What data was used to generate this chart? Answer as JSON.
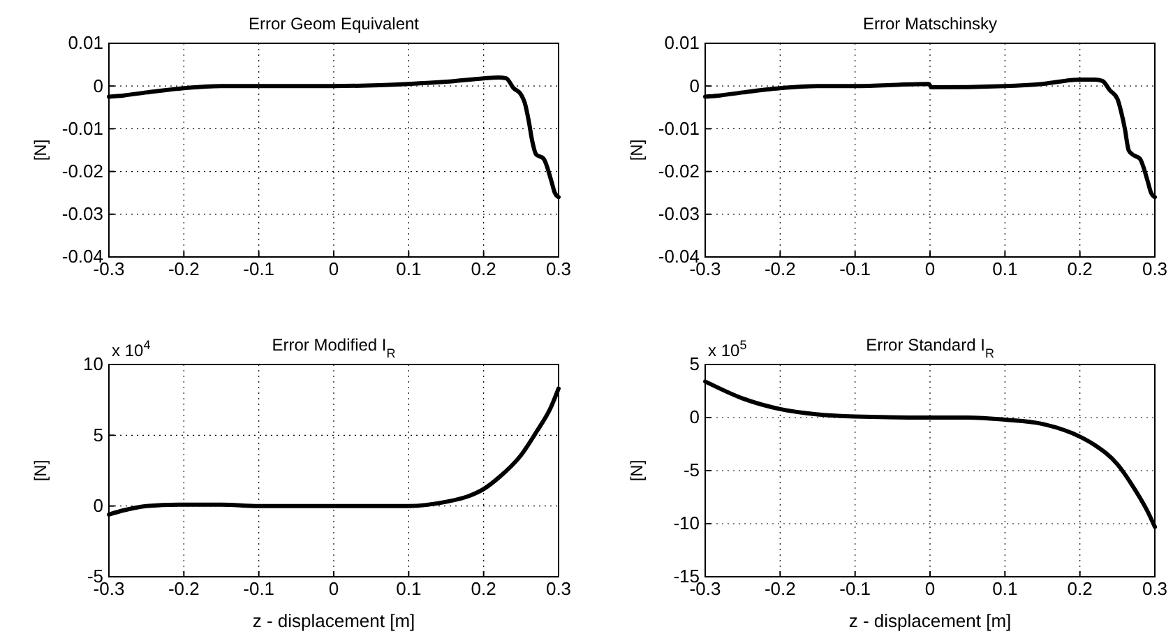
{
  "chart_data": [
    {
      "type": "line",
      "title": "Error Geom Equivalent",
      "ylabel": "[N]",
      "xlim": [
        -0.3,
        0.3
      ],
      "xticks": [
        -0.3,
        -0.2,
        -0.1,
        0,
        0.1,
        0.2,
        0.3
      ],
      "ylim": [
        -0.04,
        0.01
      ],
      "yticks": [
        -0.04,
        -0.03,
        -0.02,
        -0.01,
        0,
        0.01
      ],
      "grid": true,
      "line_style": "solid",
      "x": [
        -0.3,
        -0.28,
        -0.25,
        -0.2,
        -0.15,
        -0.1,
        0,
        0.1,
        0.15,
        0.2,
        0.22,
        0.23,
        0.24,
        0.25,
        0.255,
        0.26,
        0.265,
        0.27,
        0.28,
        0.29,
        0.295,
        0.3
      ],
      "series": [
        {
          "color": "#000000",
          "values": [
            -0.0025,
            -0.0022,
            -0.0015,
            -0.0005,
            0,
            0,
            0,
            0.0005,
            0.001,
            0.0018,
            0.002,
            0.0018,
            -0.0005,
            -0.002,
            -0.004,
            -0.008,
            -0.013,
            -0.016,
            -0.017,
            -0.022,
            -0.025,
            -0.026
          ]
        }
      ]
    },
    {
      "type": "line",
      "title": "Error Matschinsky",
      "ylabel": "[N]",
      "xlim": [
        -0.3,
        0.3
      ],
      "xticks": [
        -0.3,
        -0.2,
        -0.1,
        0,
        0.1,
        0.2,
        0.3
      ],
      "ylim": [
        -0.04,
        0.01
      ],
      "yticks": [
        -0.04,
        -0.03,
        -0.02,
        -0.01,
        0,
        0.01
      ],
      "grid": true,
      "line_style": "solid",
      "x": [
        -0.3,
        -0.28,
        -0.25,
        -0.2,
        -0.15,
        -0.1,
        -0.002,
        0.002,
        0.1,
        0.15,
        0.2,
        0.22,
        0.23,
        0.24,
        0.25,
        0.255,
        0.26,
        0.265,
        0.27,
        0.28,
        0.29,
        0.295,
        0.3
      ],
      "series": [
        {
          "color": "#000000",
          "values": [
            -0.0025,
            -0.0022,
            -0.0015,
            -0.0005,
            0,
            0,
            0.0005,
            -0.0003,
            0,
            0.0005,
            0.0015,
            0.0015,
            0.0012,
            -0.001,
            -0.003,
            -0.006,
            -0.01,
            -0.015,
            -0.016,
            -0.017,
            -0.022,
            -0.025,
            -0.026
          ]
        }
      ]
    },
    {
      "type": "line",
      "title": "Error Modified I$_{R}$",
      "ylabel": "[N]",
      "xlabel": "z - displacement [m]",
      "annotations": [
        "x 10$^{4}$"
      ],
      "xlim": [
        -0.3,
        0.3
      ],
      "xticks": [
        -0.3,
        -0.2,
        -0.1,
        0,
        0.1,
        0.2,
        0.3
      ],
      "ylim": [
        -5,
        10
      ],
      "yticks": [
        -5,
        0,
        5,
        10
      ],
      "grid": true,
      "line_style": "solid",
      "x": [
        -0.3,
        -0.28,
        -0.25,
        -0.2,
        -0.15,
        -0.1,
        0,
        0.1,
        0.15,
        0.18,
        0.2,
        0.22,
        0.25,
        0.27,
        0.29,
        0.3
      ],
      "series": [
        {
          "color": "#000000",
          "values": [
            -0.6,
            -0.3,
            0,
            0.1,
            0.1,
            0,
            0,
            0,
            0.3,
            0.7,
            1.2,
            2.0,
            3.6,
            5.2,
            7.0,
            8.3
          ]
        }
      ]
    },
    {
      "type": "line",
      "title": "Error Standard I$_{R}$",
      "ylabel": "[N]",
      "xlabel": "z - displacement [m]",
      "annotations": [
        "x 10$^{5}$"
      ],
      "xlim": [
        -0.3,
        0.3
      ],
      "xticks": [
        -0.3,
        -0.2,
        -0.1,
        0,
        0.1,
        0.2,
        0.3
      ],
      "ylim": [
        -15,
        5
      ],
      "yticks": [
        -15,
        -10,
        -5,
        0,
        5
      ],
      "grid": true,
      "line_style": "solid",
      "x": [
        -0.3,
        -0.25,
        -0.2,
        -0.15,
        -0.1,
        0,
        0.05,
        0.1,
        0.15,
        0.2,
        0.22,
        0.25,
        0.27,
        0.29,
        0.3
      ],
      "series": [
        {
          "color": "#000000",
          "values": [
            3.4,
            1.8,
            0.8,
            0.3,
            0.1,
            0,
            0,
            -0.2,
            -0.6,
            -1.8,
            -2.6,
            -4.4,
            -6.4,
            -8.8,
            -10.3
          ]
        }
      ]
    }
  ]
}
